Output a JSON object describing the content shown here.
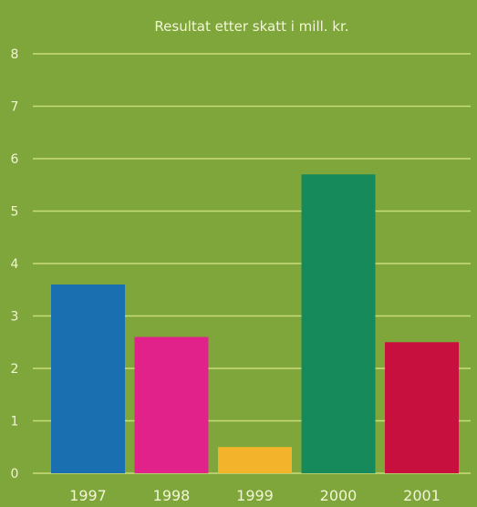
{
  "chart_data": {
    "type": "bar",
    "title": "Resultat etter skatt i mill. kr.",
    "categories": [
      "1997",
      "1998",
      "1999",
      "2000",
      "2001"
    ],
    "values": [
      3.6,
      2.6,
      0.5,
      5.7,
      2.5
    ],
    "ylim": [
      0,
      8
    ],
    "yticks": [
      "0",
      "1",
      "2",
      "3",
      "4",
      "5",
      "6",
      "7",
      "8"
    ],
    "grid": true,
    "legend": "none"
  },
  "colors": {
    "background": "#7fa63a",
    "grid": "#c8dc7c",
    "text": "#f2f5d6",
    "bars": [
      "#1a6fb0",
      "#e0228a",
      "#f3b32a",
      "#178a5b",
      "#c8103f"
    ]
  }
}
